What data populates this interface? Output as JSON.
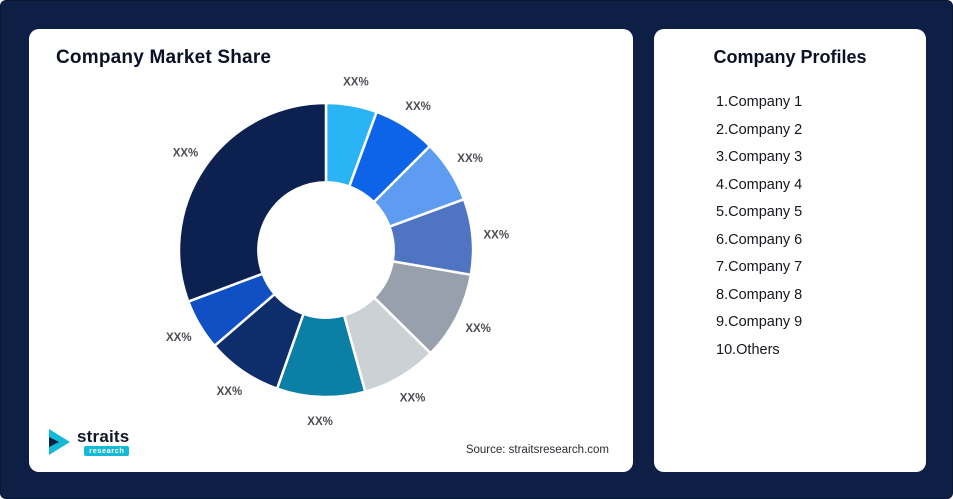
{
  "page": {
    "background_color": "#0e1f45"
  },
  "market_share_card": {
    "title": "Company Market Share",
    "source": "Source: straitsresearch.com",
    "logo": {
      "name": "straits",
      "sub": "research",
      "icon_color": "#14b9d5",
      "icon_accent_color": "#0e1f45"
    }
  },
  "profiles_card": {
    "title": "Company Profiles",
    "items": [
      "1.Company 1",
      "2.Company 2",
      "3.Company 3",
      "4.Company 4",
      "5.Company 5",
      "6.Company 6",
      "7.Company 7",
      "8.Company 8",
      "9.Company 9",
      "10.Others"
    ]
  },
  "chart_data": {
    "type": "pie",
    "variant": "donut",
    "title": "Company Market Share",
    "labels": [
      "Company 1",
      "Company 2",
      "Company 3",
      "Company 4",
      "Company 5",
      "Company 6",
      "Company 7",
      "Company 8",
      "Company 9",
      "Others"
    ],
    "data_labels": [
      "XX%",
      "XX%",
      "XX%",
      "XX%",
      "XX%",
      "XX%",
      "XX%",
      "XX%",
      "XX%",
      "XX%"
    ],
    "values": [
      5.6,
      6.9,
      6.9,
      8.3,
      9.7,
      8.3,
      9.7,
      8.3,
      5.6,
      30.7
    ],
    "colors": [
      "#2ab4f5",
      "#0d64e8",
      "#5e9cf2",
      "#4f74c2",
      "#97a0ac",
      "#ccd1d6",
      "#0c7fa6",
      "#0d2d6b",
      "#1150c4",
      "#0c2150"
    ],
    "start_angle_deg": 0,
    "direction": "clockwise",
    "inner_radius_ratio": 0.46,
    "legend": "none",
    "gridlines": false,
    "source": "Source: straitsresearch.com"
  }
}
